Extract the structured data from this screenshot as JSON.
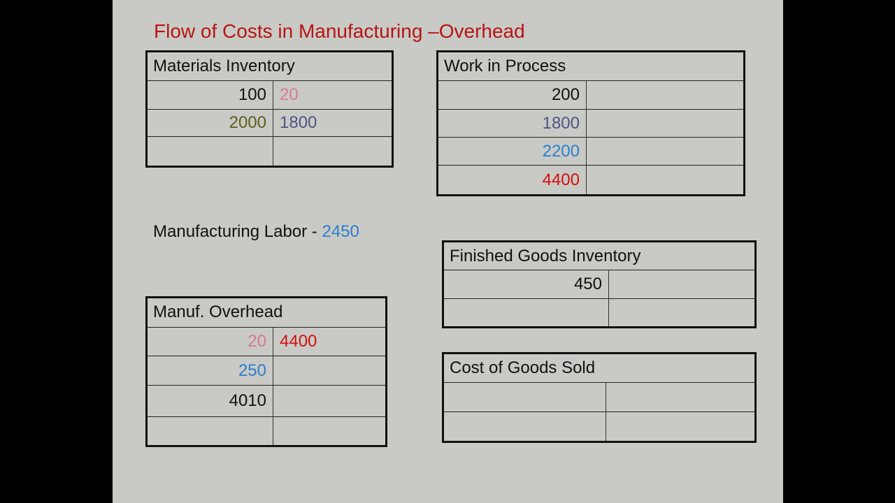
{
  "title": "Flow of Costs in Manufacturing –Overhead",
  "labor": {
    "label": "Manufacturing Labor - ",
    "value": "2450",
    "value_color": "#2a7fd0"
  },
  "colors": {
    "black": "#111111",
    "pink": "#d9799a",
    "olive": "#5e5e1e",
    "slate": "#4f5585",
    "blue": "#2a7fd0",
    "red": "#d41010"
  },
  "accounts": {
    "mi": {
      "title": "Materials Inventory",
      "rows": [
        {
          "debit": "100",
          "debit_color": "#111111",
          "credit": "20",
          "credit_color": "#d9799a"
        },
        {
          "debit": "2000",
          "debit_color": "#5e5e1e",
          "credit": "1800",
          "credit_color": "#4f5585"
        },
        {
          "debit": "",
          "credit": ""
        }
      ]
    },
    "wip": {
      "title": "Work in Process",
      "rows": [
        {
          "debit": "200",
          "debit_color": "#111111",
          "credit": ""
        },
        {
          "debit": "1800",
          "debit_color": "#4f5585",
          "credit": ""
        },
        {
          "debit": "2200",
          "debit_color": "#2a7fd0",
          "credit": ""
        },
        {
          "debit": "4400",
          "debit_color": "#d41010",
          "credit": ""
        }
      ]
    },
    "fg": {
      "title": "Finished Goods Inventory",
      "rows": [
        {
          "debit": "450",
          "debit_color": "#111111",
          "credit": ""
        },
        {
          "debit": "",
          "credit": ""
        }
      ]
    },
    "mo": {
      "title": "Manuf. Overhead",
      "rows": [
        {
          "debit": "20",
          "debit_color": "#d9799a",
          "credit": "4400",
          "credit_color": "#d41010"
        },
        {
          "debit": "250",
          "debit_color": "#2a7fd0",
          "credit": ""
        },
        {
          "debit": "4010",
          "debit_color": "#111111",
          "credit": ""
        },
        {
          "debit": "",
          "credit": ""
        }
      ]
    },
    "cogs": {
      "title": "Cost of Goods Sold",
      "rows": [
        {
          "debit": "",
          "credit": ""
        },
        {
          "debit": "",
          "credit": ""
        }
      ]
    }
  }
}
